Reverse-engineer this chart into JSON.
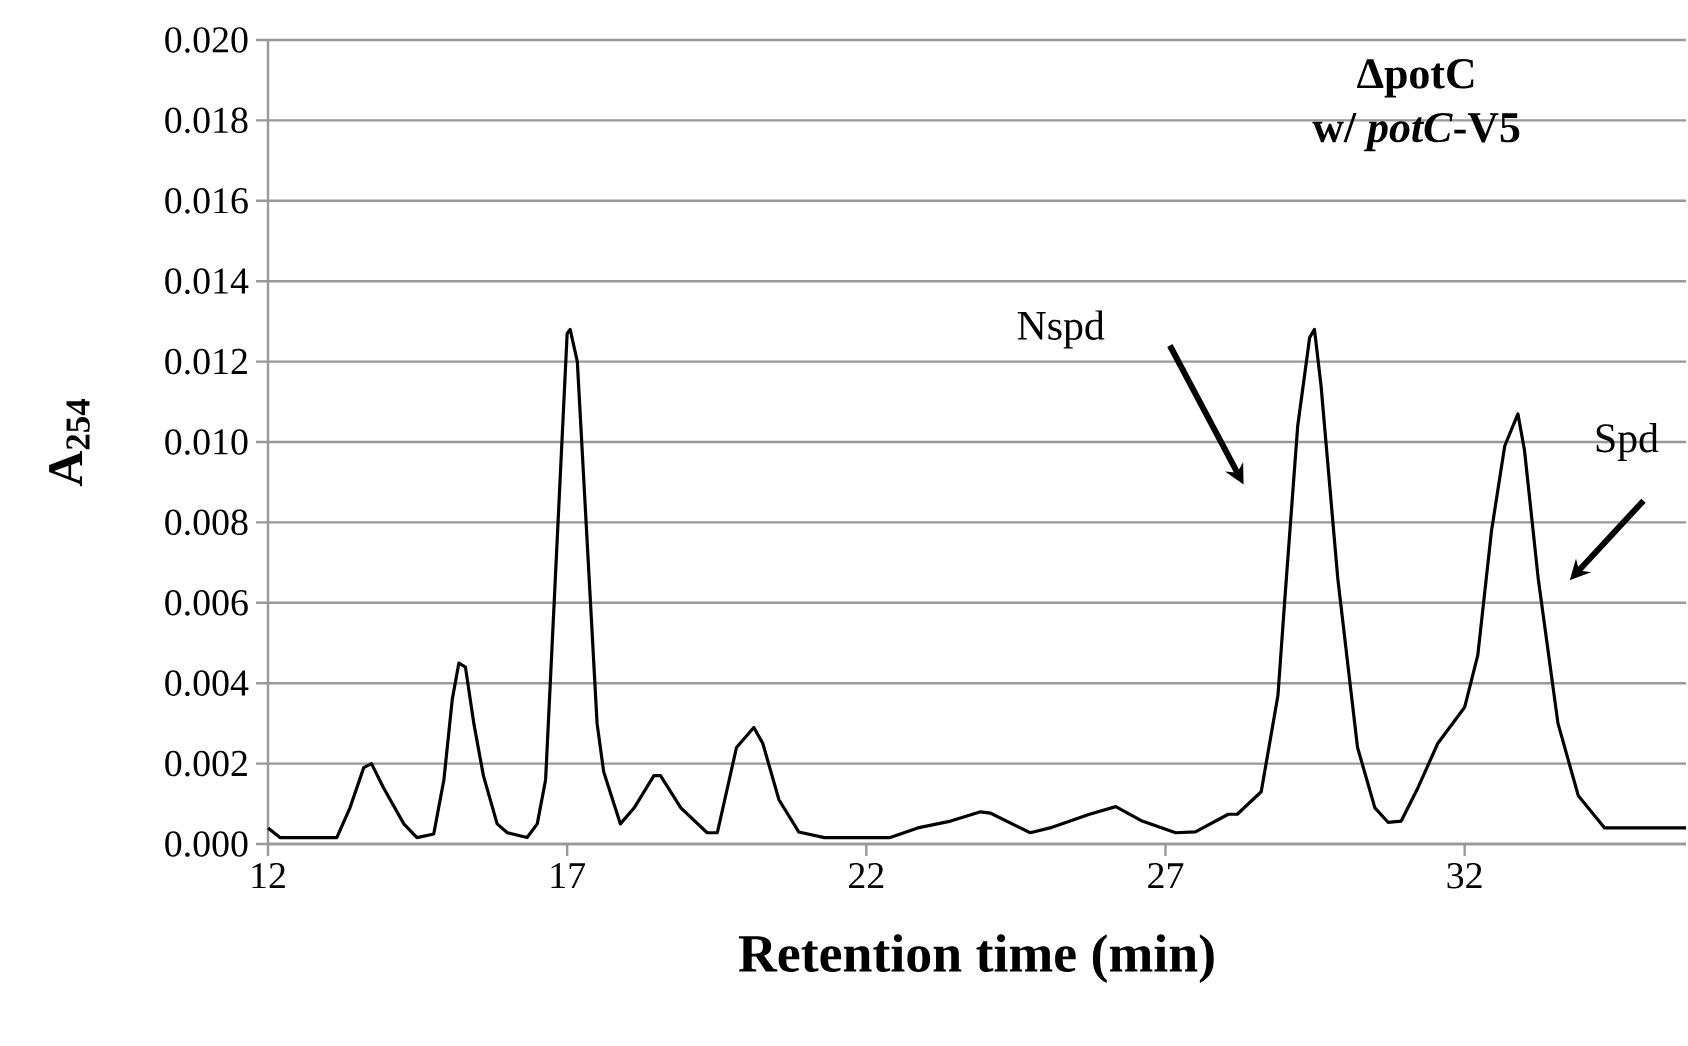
{
  "chart_data": {
    "type": "line",
    "xlabel": "Retention time (min)",
    "ylabel": "A$_{254}$",
    "color": "#000000",
    "xlim": [
      12,
      35.7
    ],
    "xticks": [
      12,
      17,
      22,
      27,
      32
    ],
    "ylim": [
      0,
      0.02
    ],
    "yticks": [
      {
        "value": 0,
        "label": "0.000"
      },
      {
        "value": 0.002,
        "label": "0.002"
      },
      {
        "value": 0.004,
        "label": "0.004"
      },
      {
        "value": 0.006,
        "label": "0.006"
      },
      {
        "value": 0.008,
        "label": "0.008"
      },
      {
        "value": 0.01,
        "label": "0.010"
      },
      {
        "value": 0.012,
        "label": "0.012"
      },
      {
        "value": 0.014,
        "label": "0.014"
      },
      {
        "value": 0.016,
        "label": "0.016"
      },
      {
        "value": 0.018,
        "label": "0.018"
      },
      {
        "value": 0.02,
        "label": "0.020"
      }
    ],
    "grid": "y",
    "x": [
      12.0,
      12.2,
      13.15,
      13.37,
      13.6,
      13.73,
      13.93,
      14.27,
      14.49,
      14.77,
      14.94,
      15.08,
      15.19,
      15.3,
      15.44,
      15.6,
      15.83,
      16.0,
      16.33,
      16.5,
      16.64,
      17.0,
      17.05,
      17.17,
      17.5,
      17.61,
      17.89,
      18.12,
      18.45,
      18.56,
      18.9,
      19.34,
      19.51,
      19.83,
      20.12,
      20.27,
      20.54,
      20.87,
      21.3,
      22.4,
      22.86,
      23.41,
      23.91,
      24.07,
      24.74,
      25.07,
      25.73,
      26.17,
      26.61,
      27.17,
      27.5,
      28.05,
      28.2,
      28.6,
      28.88,
      28.99,
      29.21,
      29.41,
      29.49,
      29.6,
      29.88,
      30.21,
      30.5,
      30.72,
      30.94,
      31.22,
      31.55,
      32.0,
      32.22,
      32.45,
      32.67,
      32.89,
      33.0,
      33.23,
      33.56,
      33.9,
      34.34,
      35.7
    ],
    "values": [
      0.0004,
      0.00016,
      0.00016,
      0.0009,
      0.0019,
      0.002,
      0.0014,
      0.0005,
      0.00016,
      0.00025,
      0.0016,
      0.0036,
      0.0045,
      0.0044,
      0.003,
      0.0017,
      0.0005,
      0.00028,
      0.00016,
      0.0005,
      0.0016,
      0.0127,
      0.0128,
      0.012,
      0.003,
      0.0018,
      0.0005,
      0.0009,
      0.0017,
      0.0017,
      0.0009,
      0.00028,
      0.00028,
      0.0024,
      0.0029,
      0.0025,
      0.0011,
      0.0003,
      0.00016,
      0.00016,
      0.0004,
      0.00057,
      0.0008,
      0.00077,
      0.00028,
      0.0004,
      0.00074,
      0.00093,
      0.00057,
      0.00028,
      0.0003,
      0.00074,
      0.00074,
      0.0013,
      0.0037,
      0.006,
      0.0104,
      0.0126,
      0.0128,
      0.0114,
      0.0066,
      0.0024,
      0.0009,
      0.00054,
      0.00057,
      0.0014,
      0.0025,
      0.0034,
      0.0047,
      0.0078,
      0.0099,
      0.0107,
      0.0098,
      0.0066,
      0.003,
      0.0012,
      0.0004,
      0.0004
    ],
    "annotations": [
      "ΔpotC",
      "w/ *potC*-V5",
      "Nspd",
      "Spd"
    ]
  }
}
